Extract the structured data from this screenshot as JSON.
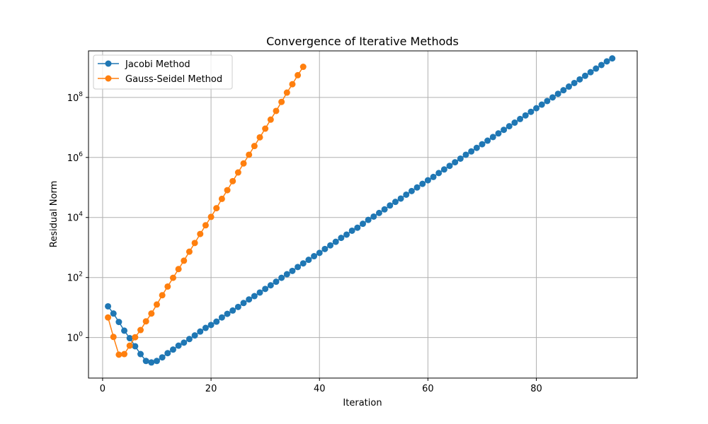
{
  "chart_data": {
    "type": "line",
    "title": "Convergence of Iterative Methods",
    "xlabel": "Iteration",
    "ylabel": "Residual Norm",
    "yscale": "log",
    "xlim": [
      -2.6,
      98.6
    ],
    "ylim_log10": [
      -1.35,
      9.55
    ],
    "grid": true,
    "legend_position": "top-left",
    "x_ticks": [
      {
        "value": 0,
        "label": "0"
      },
      {
        "value": 20,
        "label": "20"
      },
      {
        "value": 40,
        "label": "40"
      },
      {
        "value": 60,
        "label": "60"
      },
      {
        "value": 80,
        "label": "80"
      }
    ],
    "y_ticks": [
      {
        "exp": 0,
        "base": "10",
        "sup": "0"
      },
      {
        "exp": 2,
        "base": "10",
        "sup": "2"
      },
      {
        "exp": 4,
        "base": "10",
        "sup": "4"
      },
      {
        "exp": 6,
        "base": "10",
        "sup": "6"
      },
      {
        "exp": 8,
        "base": "10",
        "sup": "8"
      }
    ],
    "series": [
      {
        "name": "Jacobi Method",
        "color": "#1f77b4",
        "x_start": 1,
        "log10_values": [
          1.04,
          0.8,
          0.52,
          0.23,
          -0.02,
          -0.29,
          -0.55,
          -0.78,
          -0.83,
          -0.78,
          -0.66,
          -0.52,
          -0.4,
          -0.27,
          -0.17,
          -0.05,
          0.07,
          0.2,
          0.32,
          0.42,
          0.53,
          0.67,
          0.79,
          0.9,
          1.02,
          1.15,
          1.27,
          1.38,
          1.5,
          1.62,
          1.74,
          1.86,
          1.99,
          2.11,
          2.22,
          2.35,
          2.47,
          2.59,
          2.71,
          2.82,
          2.95,
          3.07,
          3.19,
          3.32,
          3.43,
          3.56,
          3.66,
          3.79,
          3.92,
          4.03,
          4.15,
          4.27,
          4.4,
          4.52,
          4.63,
          4.76,
          4.88,
          5.0,
          5.12,
          5.24,
          5.35,
          5.48,
          5.6,
          5.72,
          5.84,
          5.96,
          6.09,
          6.2,
          6.32,
          6.44,
          6.56,
          6.68,
          6.8,
          6.92,
          7.04,
          7.16,
          7.28,
          7.4,
          7.52,
          7.64,
          7.76,
          7.88,
          8.0,
          8.12,
          8.24,
          8.36,
          8.48,
          8.6,
          8.72,
          8.84,
          8.96,
          9.08,
          9.2,
          9.3
        ]
      },
      {
        "name": "Gauss-Seidel Method",
        "color": "#ff7f0e",
        "x_start": 1,
        "log10_values": [
          0.67,
          0.02,
          -0.57,
          -0.55,
          -0.27,
          0.01,
          0.25,
          0.54,
          0.8,
          1.1,
          1.41,
          1.7,
          1.99,
          2.28,
          2.56,
          2.86,
          3.15,
          3.45,
          3.74,
          4.02,
          4.31,
          4.62,
          4.91,
          5.21,
          5.5,
          5.8,
          6.09,
          6.38,
          6.67,
          6.96,
          7.26,
          7.55,
          7.85,
          8.16,
          8.44,
          8.74,
          9.02
        ]
      }
    ]
  }
}
